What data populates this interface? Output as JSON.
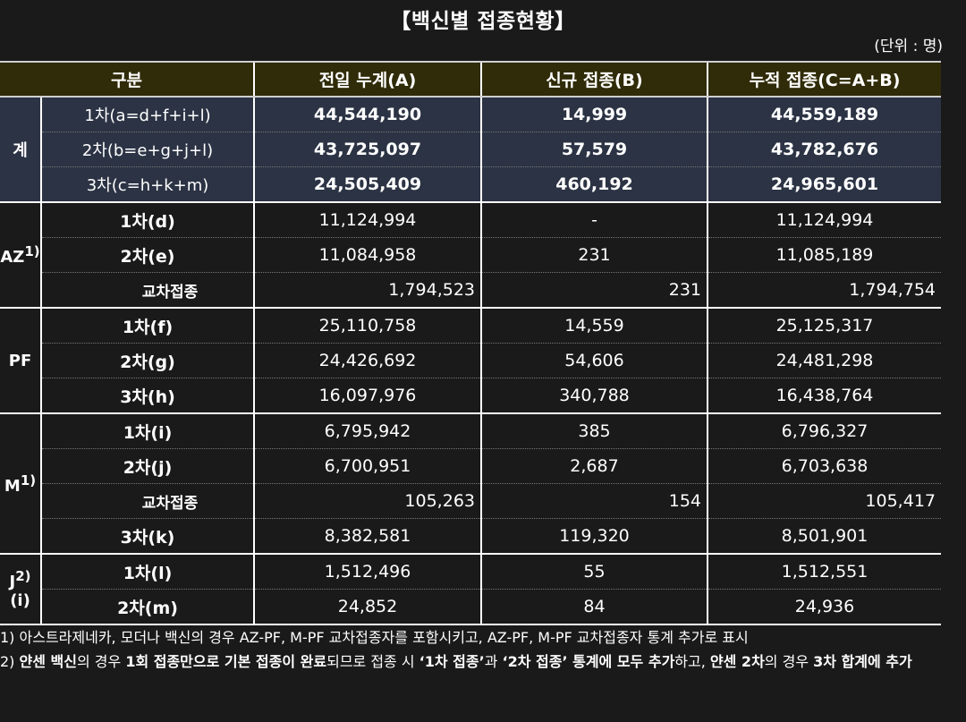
{
  "title": "【백신별 접종현황】",
  "unit": "(단위 : 명)",
  "headers": [
    "구분",
    "전일 누계(A)",
    "신규 접종(B)",
    "누적 접종(C=A+B)"
  ],
  "groups": {
    "total": {
      "label": "계",
      "rows": [
        {
          "label": "1차(a=d+f+i+l)",
          "a": "44,544,190",
          "b": "14,999",
          "c": "44,559,189"
        },
        {
          "label": "2차(b=e+g+j+l)",
          "a": "43,725,097",
          "b": "57,579",
          "c": "43,782,676"
        },
        {
          "label": "3차(c=h+k+m)",
          "a": "24,505,409",
          "b": "460,192",
          "c": "24,965,601"
        }
      ]
    },
    "az": {
      "label": "AZ",
      "sup": "1)",
      "rows": [
        {
          "label": "1차(d)",
          "a": "11,124,994",
          "b": "-",
          "c": "11,124,994"
        },
        {
          "label": "2차(e)",
          "a": "11,084,958",
          "b": "231",
          "c": "11,085,189"
        },
        {
          "label": "교차접종",
          "a": "1,794,523",
          "b": "231",
          "c": "1,794,754"
        }
      ]
    },
    "pf": {
      "label": "PF",
      "rows": [
        {
          "label": "1차(f)",
          "a": "25,110,758",
          "b": "14,559",
          "c": "25,125,317"
        },
        {
          "label": "2차(g)",
          "a": "24,426,692",
          "b": "54,606",
          "c": "24,481,298"
        },
        {
          "label": "3차(h)",
          "a": "16,097,976",
          "b": "340,788",
          "c": "16,438,764"
        }
      ]
    },
    "m": {
      "label": "M",
      "sup": "1)",
      "rows": [
        {
          "label": "1차(i)",
          "a": "6,795,942",
          "b": "385",
          "c": "6,796,327"
        },
        {
          "label": "2차(j)",
          "a": "6,700,951",
          "b": "2,687",
          "c": "6,703,638"
        },
        {
          "label": "교차접종",
          "a": "105,263",
          "b": "154",
          "c": "105,417"
        },
        {
          "label": "3차(k)",
          "a": "8,382,581",
          "b": "119,320",
          "c": "8,501,901"
        }
      ]
    },
    "j": {
      "label": "J",
      "sup": "2)",
      "suffix": "(i)",
      "rows": [
        {
          "label": "1차(l)",
          "a": "1,512,496",
          "b": "55",
          "c": "1,512,551"
        },
        {
          "label": "2차(m)",
          "a": "24,852",
          "b": "84",
          "c": "24,936"
        }
      ]
    }
  },
  "notes": {
    "n1": "1) 아스트라제네카, 모더나 백신의 경우 AZ-PF, M-PF 교차접종자를 포함시키고, AZ-PF, M-PF 교차접종자 통계 추가로 표시",
    "n2_prefix": "2) ",
    "n2_b1": "얀센 백신",
    "n2_t1": "의 경우 ",
    "n2_b2": "1회 접종만으로 기본 접종이 완료",
    "n2_t2": "되므로 접종 시 ",
    "n2_b3": "‘1차 접종’",
    "n2_t3": "과 ",
    "n2_b4": "‘2차 접종’ 통계에 모두 추가",
    "n2_t4": "하고, ",
    "n2_b5": "얀센 2차",
    "n2_t5": "의 경우 ",
    "n2_b6": "3차 합계에 추가"
  },
  "colors": {
    "background": "#1a1a1a",
    "header_bg": "#302b08",
    "total_bg": "#2b3344"
  }
}
